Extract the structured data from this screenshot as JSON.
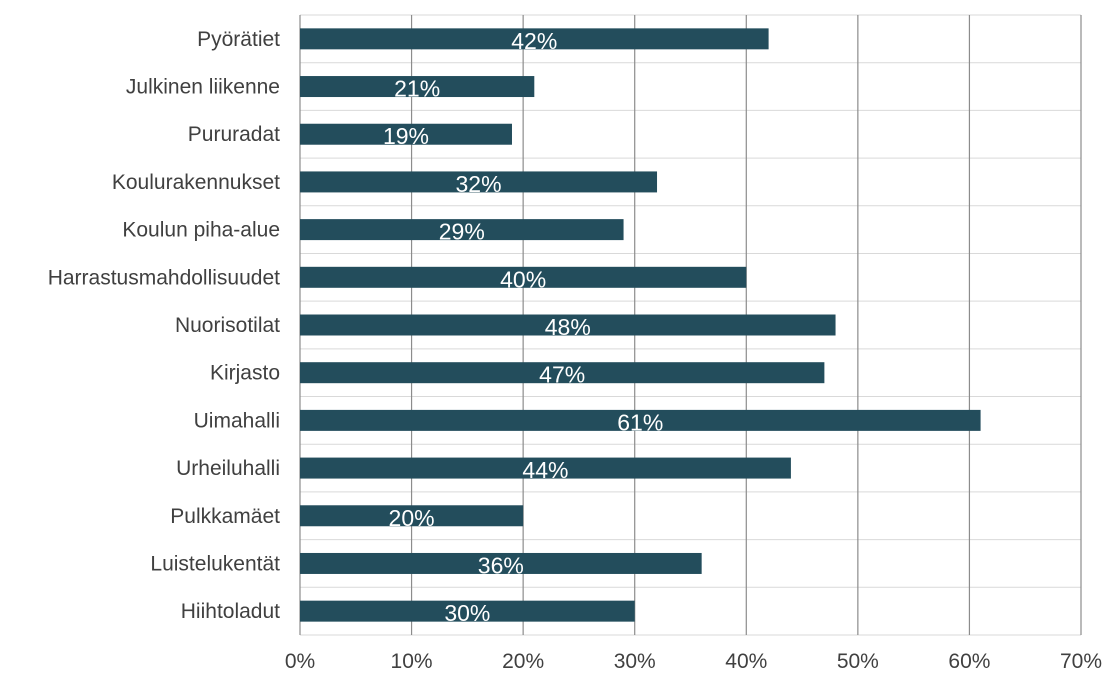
{
  "chart_data": {
    "type": "bar",
    "orientation": "horizontal",
    "categories": [
      "Pyörätiet",
      "Julkinen liikenne",
      "Pururadat",
      "Koulurakennukset",
      "Koulun piha-alue",
      "Harrastusmahdollisuudet",
      "Nuorisotilat",
      "Kirjasto",
      "Uimahalli",
      "Urheiluhalli",
      "Pulkkamäet",
      "Luistelukentät",
      "Hiihtoladut"
    ],
    "values": [
      42,
      21,
      19,
      32,
      29,
      40,
      48,
      47,
      61,
      44,
      20,
      36,
      30
    ],
    "value_labels": [
      "42%",
      "21%",
      "19%",
      "32%",
      "29%",
      "40%",
      "48%",
      "47%",
      "61%",
      "44%",
      "20%",
      "36%",
      "30%"
    ],
    "x_ticks": [
      0,
      10,
      20,
      30,
      40,
      50,
      60,
      70
    ],
    "x_tick_labels": [
      "0%",
      "10%",
      "20%",
      "30%",
      "40%",
      "50%",
      "60%",
      "70%"
    ],
    "xlim": [
      0,
      70
    ],
    "grid": true,
    "legend": "none",
    "bar_color": "#234d5c"
  }
}
